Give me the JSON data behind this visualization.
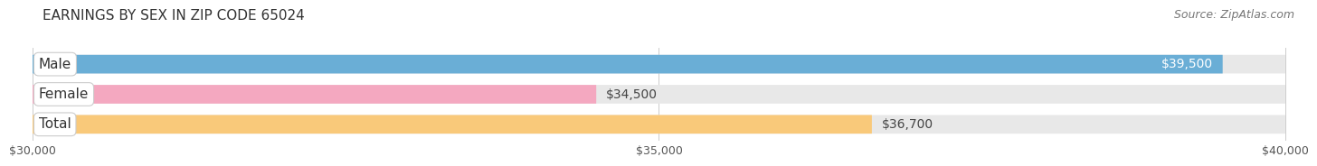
{
  "title": "EARNINGS BY SEX IN ZIP CODE 65024",
  "source": "Source: ZipAtlas.com",
  "categories": [
    "Male",
    "Female",
    "Total"
  ],
  "values": [
    39500,
    34500,
    36700
  ],
  "bar_colors": [
    "#6AAED6",
    "#F4A8C0",
    "#F9C97A"
  ],
  "bar_bg_color": "#E8E8E8",
  "xmin": 30000,
  "xmax": 40000,
  "xticks": [
    30000,
    35000,
    40000
  ],
  "xtick_labels": [
    "$30,000",
    "$35,000",
    "$40,000"
  ],
  "bar_value_labels": [
    "$39,500",
    "$34,500",
    "$36,700"
  ],
  "value_label_inside": [
    true,
    false,
    false
  ],
  "bar_height": 0.62,
  "title_fontsize": 11,
  "source_fontsize": 9,
  "label_fontsize": 11,
  "value_fontsize": 10,
  "tick_fontsize": 9,
  "background_color": "#FFFFFF",
  "fig_bg_color": "#FFFFFF"
}
